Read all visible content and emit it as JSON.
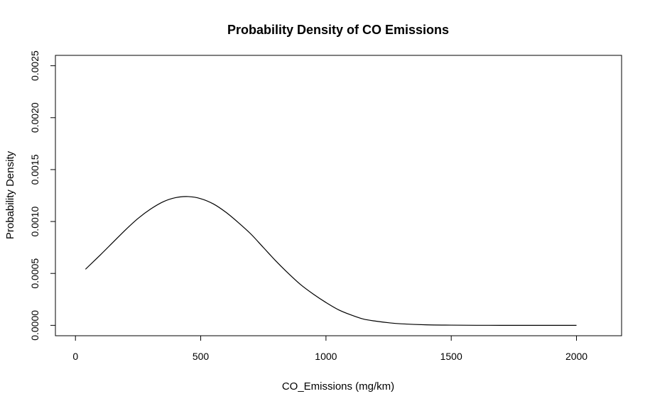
{
  "chart_data": {
    "type": "line",
    "title": "Probability Density of CO Emissions",
    "xlabel": "CO_Emissions (mg/km)",
    "ylabel": "Probability Density",
    "xlim": [
      -80,
      2180
    ],
    "ylim": [
      -0.0001,
      0.0026
    ],
    "xticks": [
      0,
      500,
      1000,
      1500,
      2000
    ],
    "xtick_labels": [
      "0",
      "500",
      "1000",
      "1500",
      "2000"
    ],
    "yticks": [
      0.0,
      0.0005,
      0.001,
      0.0015,
      0.002,
      0.0025
    ],
    "ytick_labels": [
      "0.0000",
      "0.0005",
      "0.0010",
      "0.0015",
      "0.0020",
      "0.0025"
    ],
    "grid": false,
    "legend": "none",
    "series": [
      {
        "x": [
          40,
          100,
          150,
          200,
          250,
          300,
          350,
          400,
          450,
          500,
          550,
          600,
          650,
          700,
          750,
          800,
          850,
          900,
          950,
          1000,
          1050,
          1100,
          1150,
          1200,
          1250,
          1300,
          1400,
          1500,
          1600,
          1700,
          1800,
          1900,
          2000
        ],
        "y": [
          0.00054,
          0.00068,
          0.0008,
          0.00092,
          0.00103,
          0.00112,
          0.00119,
          0.00123,
          0.00124,
          0.00122,
          0.00117,
          0.00109,
          0.00099,
          0.00088,
          0.00075,
          0.00062,
          0.0005,
          0.00039,
          0.0003,
          0.00022,
          0.00015,
          0.0001,
          6e-05,
          4e-05,
          2.5e-05,
          1.5e-05,
          5e-06,
          2e-06,
          5e-07,
          1e-07,
          0.0,
          0.0,
          0.0
        ]
      }
    ]
  }
}
